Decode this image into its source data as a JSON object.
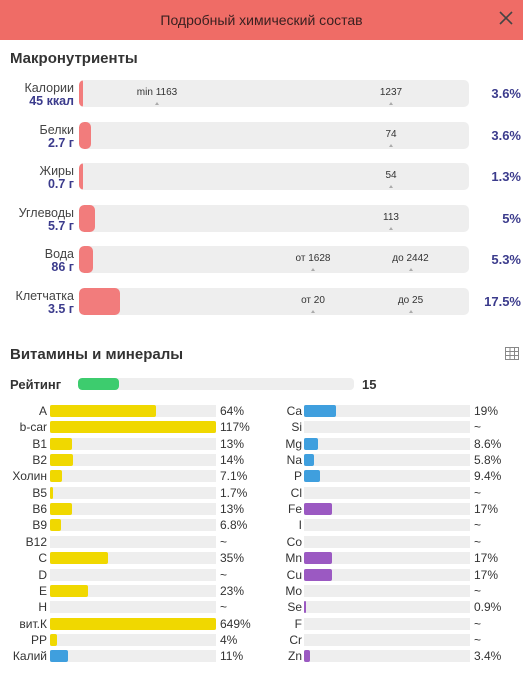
{
  "header": {
    "title": "Подробный химический состав"
  },
  "macros": {
    "title": "Макронутриенты",
    "items": [
      {
        "name": "Калории",
        "value": "45 ккал",
        "fill": 0.008,
        "ticks": [
          {
            "label": "min 1163",
            "at": 0.2
          },
          {
            "label": "1237",
            "at": 0.8
          }
        ],
        "pct": "3.6%"
      },
      {
        "name": "Белки",
        "value": "2.7 г",
        "fill": 0.03,
        "ticks": [
          {
            "label": "74",
            "at": 0.8
          }
        ],
        "pct": "3.6%"
      },
      {
        "name": "Жиры",
        "value": "0.7 г",
        "fill": 0.01,
        "ticks": [
          {
            "label": "54",
            "at": 0.8
          }
        ],
        "pct": "1.3%"
      },
      {
        "name": "Углеводы",
        "value": "5.7 г",
        "fill": 0.04,
        "ticks": [
          {
            "label": "113",
            "at": 0.8
          }
        ],
        "pct": "5%"
      },
      {
        "name": "Вода",
        "value": "86 г",
        "fill": 0.035,
        "ticks": [
          {
            "label": "от 1628",
            "at": 0.6
          },
          {
            "label": "до 2442",
            "at": 0.85
          }
        ],
        "pct": "5.3%"
      },
      {
        "name": "Клетчатка",
        "value": "3.5 г",
        "fill": 0.105,
        "ticks": [
          {
            "label": "от 20",
            "at": 0.6
          },
          {
            "label": "до 25",
            "at": 0.85
          }
        ],
        "pct": "17.5%"
      }
    ]
  },
  "vitamins": {
    "title": "Витамины и минералы",
    "rating_label": "Рейтинг",
    "rating_value": "15",
    "rating_fill": 0.15,
    "colors": {
      "yellow": "#f0d800",
      "blue": "#3f9fde",
      "purple": "#9b59c2",
      "green": "#3dcc6e",
      "red": "#f27c7c",
      "header": "#ef6c66"
    },
    "left": [
      {
        "name": "A",
        "pct": "64%",
        "fill": 0.64,
        "color": "yellow"
      },
      {
        "name": "b-car",
        "pct": "117%",
        "fill": 1.0,
        "color": "yellow"
      },
      {
        "name": "B1",
        "pct": "13%",
        "fill": 0.13,
        "color": "yellow"
      },
      {
        "name": "B2",
        "pct": "14%",
        "fill": 0.14,
        "color": "yellow"
      },
      {
        "name": "Холин",
        "pct": "7.1%",
        "fill": 0.071,
        "color": "yellow"
      },
      {
        "name": "B5",
        "pct": "1.7%",
        "fill": 0.017,
        "color": "yellow"
      },
      {
        "name": "B6",
        "pct": "13%",
        "fill": 0.13,
        "color": "yellow"
      },
      {
        "name": "B9",
        "pct": "6.8%",
        "fill": 0.068,
        "color": "yellow"
      },
      {
        "name": "B12",
        "pct": "~",
        "fill": 0,
        "color": "yellow"
      },
      {
        "name": "C",
        "pct": "35%",
        "fill": 0.35,
        "color": "yellow"
      },
      {
        "name": "D",
        "pct": "~",
        "fill": 0,
        "color": "yellow"
      },
      {
        "name": "E",
        "pct": "23%",
        "fill": 0.23,
        "color": "yellow"
      },
      {
        "name": "H",
        "pct": "~",
        "fill": 0,
        "color": "yellow"
      },
      {
        "name": "вит.К",
        "pct": "649%",
        "fill": 1.0,
        "color": "yellow"
      },
      {
        "name": "PP",
        "pct": "4%",
        "fill": 0.04,
        "color": "yellow"
      },
      {
        "name": "Калий",
        "pct": "11%",
        "fill": 0.11,
        "color": "blue"
      }
    ],
    "right": [
      {
        "name": "Ca",
        "pct": "19%",
        "fill": 0.19,
        "color": "blue"
      },
      {
        "name": "Si",
        "pct": "~",
        "fill": 0,
        "color": "blue"
      },
      {
        "name": "Mg",
        "pct": "8.6%",
        "fill": 0.086,
        "color": "blue"
      },
      {
        "name": "Na",
        "pct": "5.8%",
        "fill": 0.058,
        "color": "blue"
      },
      {
        "name": "P",
        "pct": "9.4%",
        "fill": 0.094,
        "color": "blue"
      },
      {
        "name": "Cl",
        "pct": "~",
        "fill": 0,
        "color": "blue"
      },
      {
        "name": "Fe",
        "pct": "17%",
        "fill": 0.17,
        "color": "purple"
      },
      {
        "name": "I",
        "pct": "~",
        "fill": 0,
        "color": "purple"
      },
      {
        "name": "Co",
        "pct": "~",
        "fill": 0,
        "color": "purple"
      },
      {
        "name": "Mn",
        "pct": "17%",
        "fill": 0.17,
        "color": "purple"
      },
      {
        "name": "Cu",
        "pct": "17%",
        "fill": 0.17,
        "color": "purple"
      },
      {
        "name": "Mo",
        "pct": "~",
        "fill": 0,
        "color": "purple"
      },
      {
        "name": "Se",
        "pct": "0.9%",
        "fill": 0.009,
        "color": "purple"
      },
      {
        "name": "F",
        "pct": "~",
        "fill": 0,
        "color": "purple"
      },
      {
        "name": "Cr",
        "pct": "~",
        "fill": 0,
        "color": "purple"
      },
      {
        "name": "Zn",
        "pct": "3.4%",
        "fill": 0.034,
        "color": "purple"
      }
    ]
  }
}
